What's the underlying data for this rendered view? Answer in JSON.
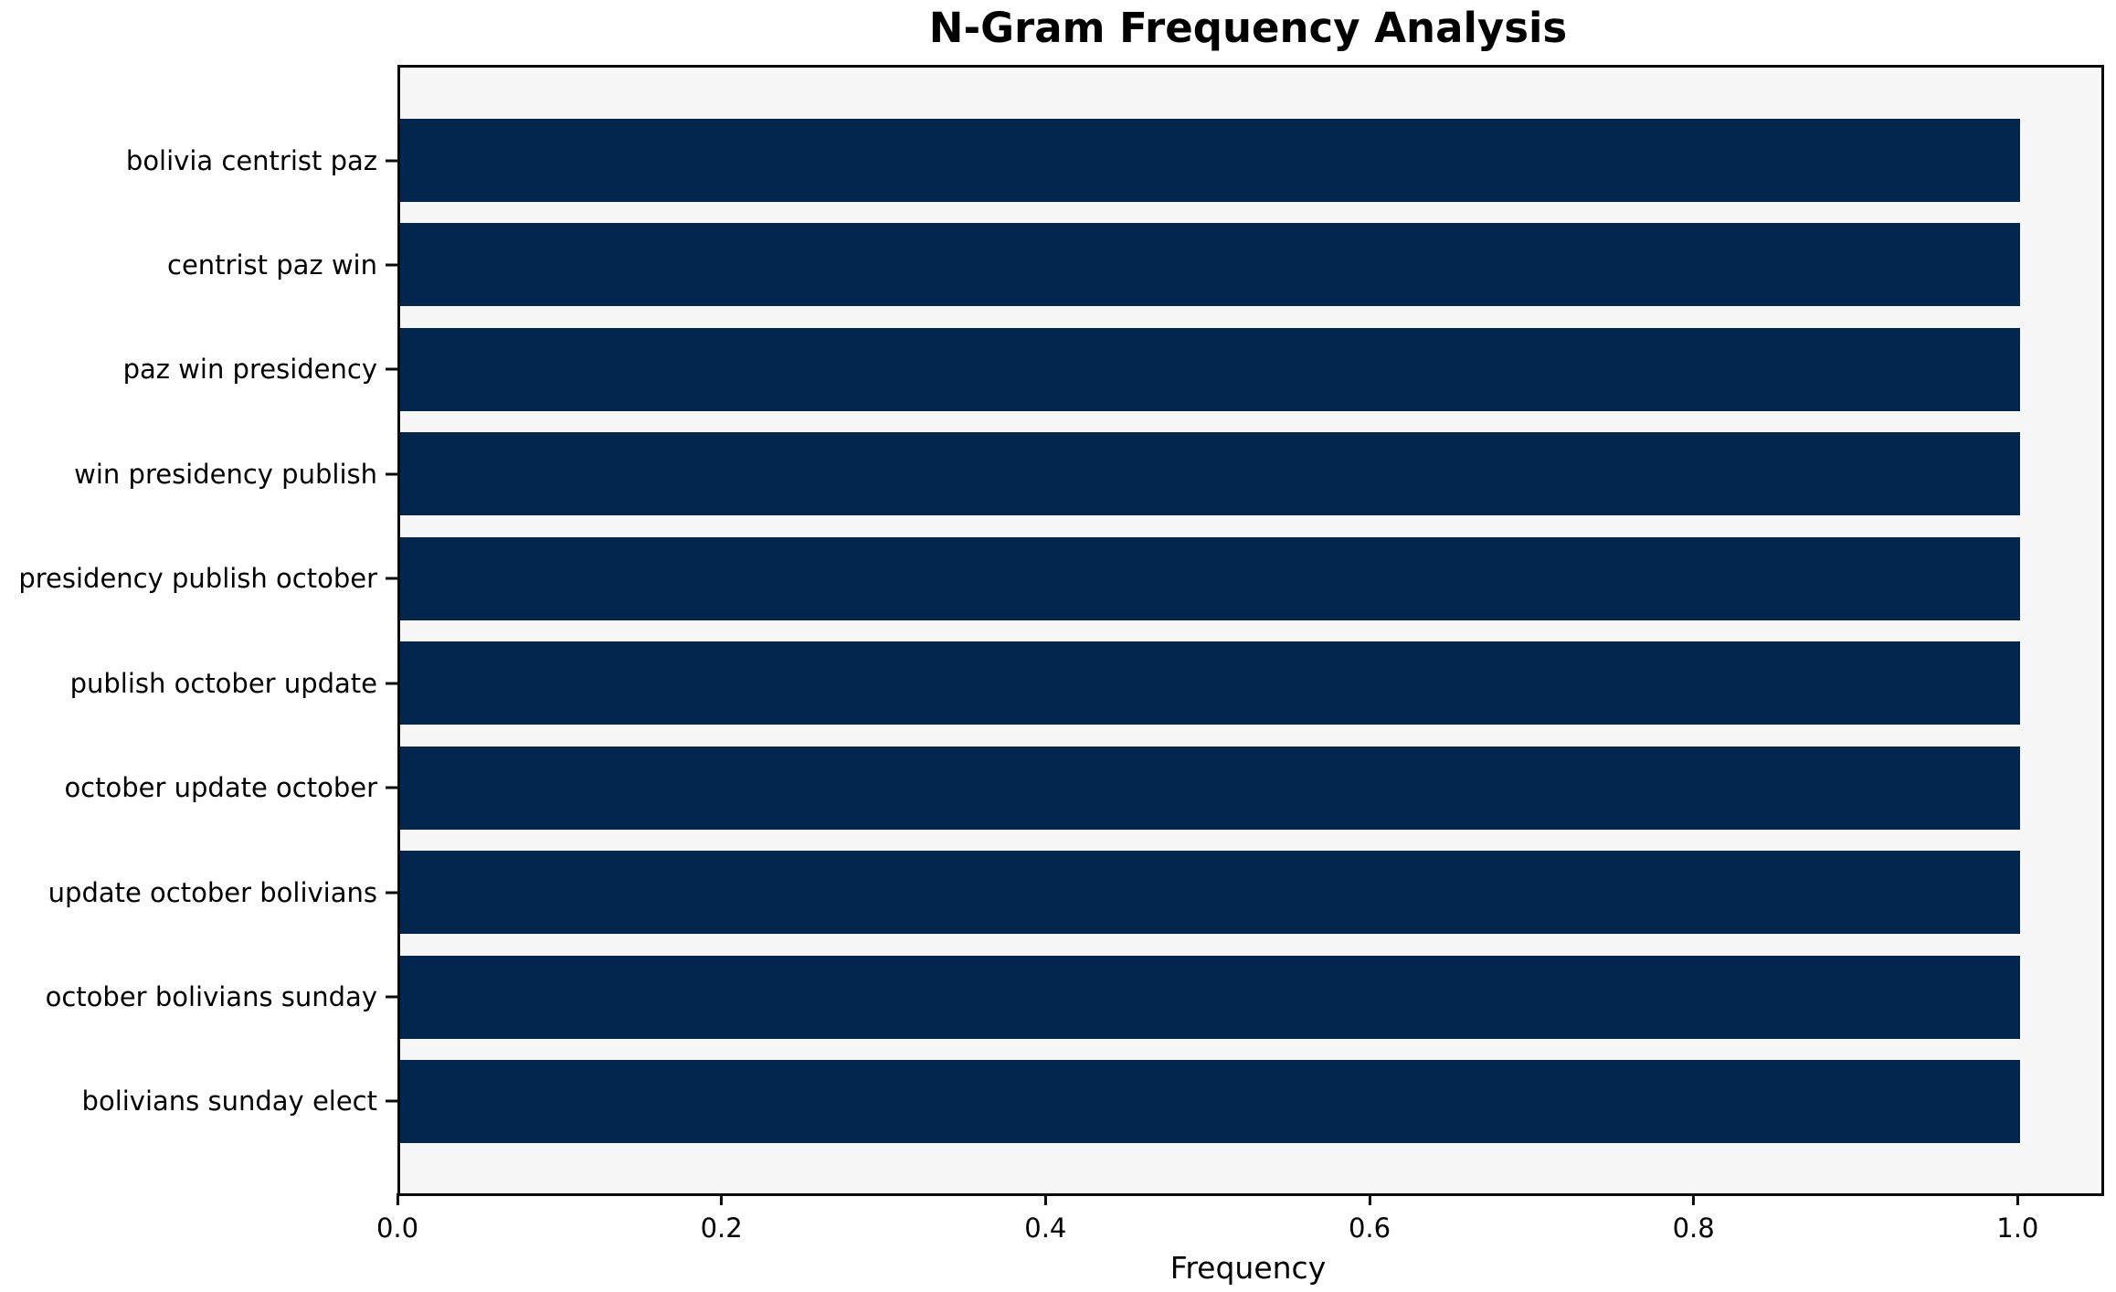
{
  "title": "N-Gram Frequency Analysis",
  "chart_data": {
    "type": "bar",
    "orientation": "horizontal",
    "title": "N-Gram Frequency Analysis",
    "xlabel": "Frequency",
    "ylabel": "",
    "categories": [
      "bolivia centrist paz",
      "centrist paz win",
      "paz win presidency",
      "win presidency publish",
      "presidency publish october",
      "publish october update",
      "october update october",
      "update october bolivians",
      "october bolivians sunday",
      "bolivians sunday elect"
    ],
    "values": [
      1.0,
      1.0,
      1.0,
      1.0,
      1.0,
      1.0,
      1.0,
      1.0,
      1.0,
      1.0
    ],
    "xlim": [
      0,
      1.05
    ],
    "xticks": [
      0.0,
      0.2,
      0.4,
      0.6,
      0.8,
      1.0
    ],
    "xtick_labels": [
      "0.0",
      "0.2",
      "0.4",
      "0.6",
      "0.8",
      "1.0"
    ],
    "grid": "off",
    "legend": "none",
    "bar_color": "#02264e",
    "plot_background": "#f7f7f7",
    "figure_background": "#ffffff"
  }
}
